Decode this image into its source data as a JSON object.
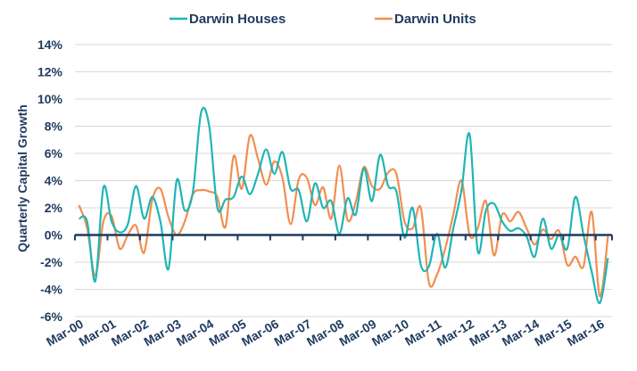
{
  "chart_data": {
    "type": "line",
    "title": "",
    "xlabel": "",
    "ylabel": "Quarterly Capital Growth",
    "ylim": [
      -6,
      14
    ],
    "yticks": [
      -6,
      -4,
      -2,
      0,
      2,
      4,
      6,
      8,
      10,
      12,
      14
    ],
    "ytick_labels": [
      "-6%",
      "-4%",
      "-2%",
      "0%",
      "2%",
      "4%",
      "6%",
      "8%",
      "10%",
      "12%",
      "14%"
    ],
    "xtick_labels": [
      "Mar-00",
      "Mar-01",
      "Mar-02",
      "Mar-03",
      "Mar-04",
      "Mar-05",
      "Mar-06",
      "Mar-07",
      "Mar-08",
      "Mar-09",
      "Mar-10",
      "Mar-11",
      "Mar-12",
      "Mar-13",
      "Mar-14",
      "Mar-15",
      "Mar-16"
    ],
    "x": [
      "Mar-00",
      "Jun-00",
      "Sep-00",
      "Dec-00",
      "Mar-01",
      "Jun-01",
      "Sep-01",
      "Dec-01",
      "Mar-02",
      "Jun-02",
      "Sep-02",
      "Dec-02",
      "Mar-03",
      "Jun-03",
      "Sep-03",
      "Dec-03",
      "Mar-04",
      "Jun-04",
      "Sep-04",
      "Dec-04",
      "Mar-05",
      "Jun-05",
      "Sep-05",
      "Dec-05",
      "Mar-06",
      "Jun-06",
      "Sep-06",
      "Dec-06",
      "Mar-07",
      "Jun-07",
      "Sep-07",
      "Dec-07",
      "Mar-08",
      "Jun-08",
      "Sep-08",
      "Dec-08",
      "Mar-09",
      "Jun-09",
      "Sep-09",
      "Dec-09",
      "Mar-10",
      "Jun-10",
      "Sep-10",
      "Dec-10",
      "Mar-11",
      "Jun-11",
      "Sep-11",
      "Dec-11",
      "Mar-12",
      "Jun-12",
      "Sep-12",
      "Dec-12",
      "Mar-13",
      "Jun-13",
      "Sep-13",
      "Dec-13",
      "Mar-14",
      "Jun-14",
      "Sep-14",
      "Dec-14",
      "Mar-15",
      "Jun-15",
      "Sep-15",
      "Dec-15",
      "Mar-16",
      "Jun-16"
    ],
    "legend_position": "top",
    "grid": true,
    "series": [
      {
        "name": "Darwin Houses",
        "color": "#1fb5b5",
        "values": [
          1.2,
          1.0,
          -3.4,
          3.5,
          1.0,
          0.2,
          0.8,
          3.6,
          1.2,
          2.8,
          1.0,
          -2.5,
          4.0,
          1.8,
          3.2,
          9.0,
          8.0,
          2.0,
          2.6,
          2.8,
          4.3,
          3.0,
          4.5,
          6.3,
          4.5,
          6.1,
          3.4,
          3.3,
          1.0,
          3.8,
          2.0,
          2.5,
          0.1,
          2.7,
          1.5,
          4.9,
          2.5,
          5.9,
          3.6,
          3.2,
          -0.2,
          2.0,
          -2.2,
          -2.3,
          0.1,
          -2.4,
          0.5,
          3.3,
          7.4,
          -1.2,
          1.8,
          2.3,
          1.0,
          0.3,
          0.5,
          -0.1,
          -1.6,
          1.2,
          -1.0,
          0.0,
          -1.0,
          2.8,
          0.0,
          -2.7,
          -5.0,
          -1.7
        ]
      },
      {
        "name": "Darwin Units",
        "color": "#f28e4f",
        "values": [
          2.2,
          0.5,
          -3.0,
          1.0,
          1.4,
          -1.0,
          0.0,
          0.7,
          -1.3,
          2.6,
          3.4,
          1.3,
          0.0,
          1.0,
          3.0,
          3.3,
          3.2,
          2.8,
          0.6,
          5.8,
          3.4,
          7.3,
          5.6,
          3.7,
          5.4,
          4.2,
          0.8,
          4.1,
          4.2,
          2.2,
          3.5,
          1.2,
          5.1,
          1.1,
          2.4,
          5.0,
          3.6,
          3.4,
          4.6,
          4.5,
          1.0,
          0.5,
          2.0,
          -3.5,
          -2.9,
          -1.0,
          1.5,
          4.0,
          0.0,
          0.5,
          2.5,
          -1.5,
          1.5,
          1.0,
          1.7,
          0.5,
          -0.7,
          0.4,
          -0.3,
          0.3,
          -2.2,
          -1.6,
          -2.3,
          1.7,
          -4.5,
          -0.1
        ]
      }
    ]
  }
}
